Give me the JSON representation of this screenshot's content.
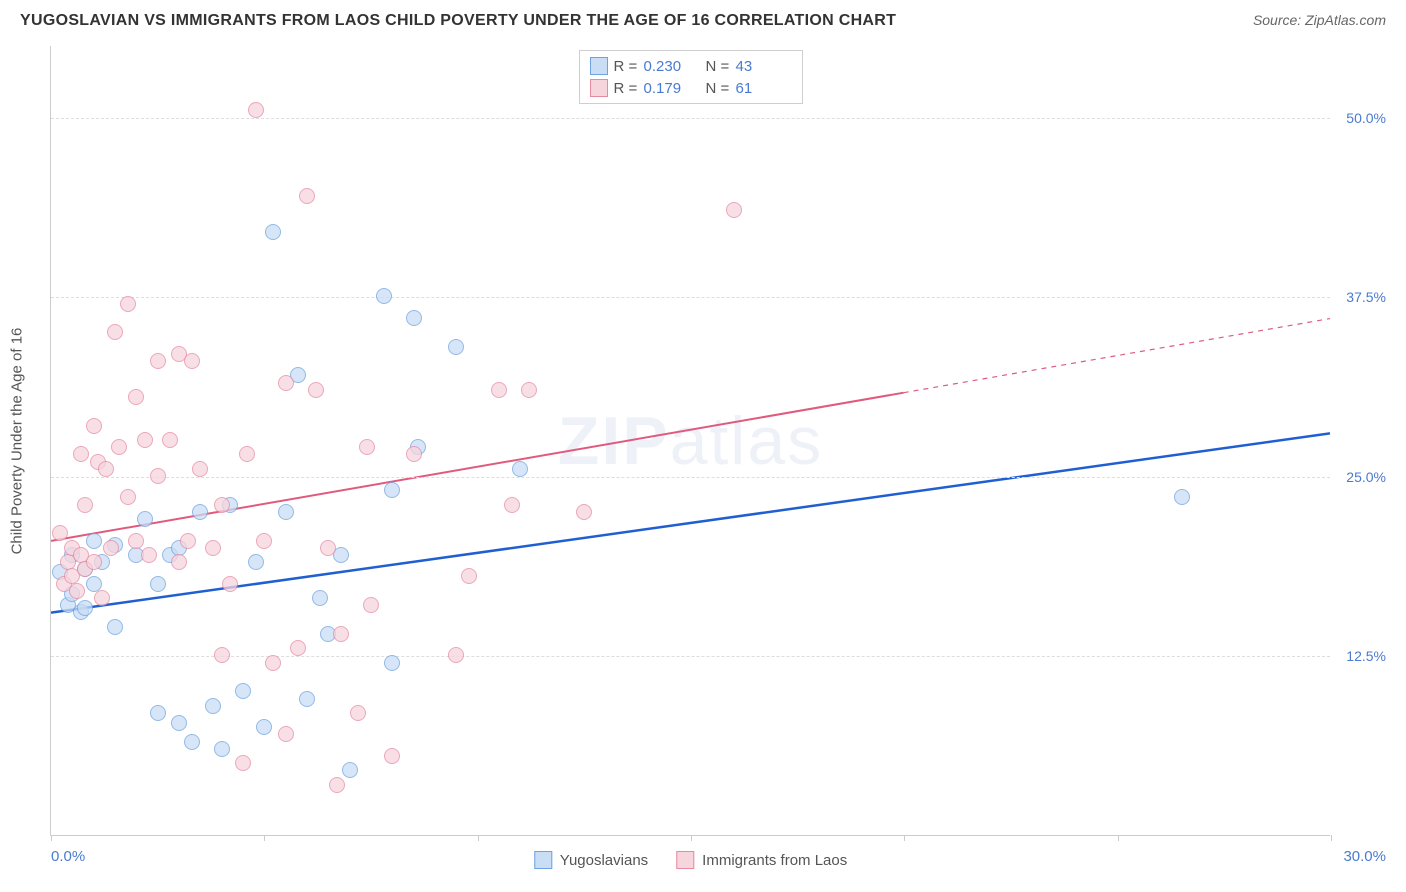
{
  "header": {
    "title": "YUGOSLAVIAN VS IMMIGRANTS FROM LAOS CHILD POVERTY UNDER THE AGE OF 16 CORRELATION CHART",
    "source_prefix": "Source: ",
    "source": "ZipAtlas.com"
  },
  "chart": {
    "type": "scatter",
    "y_axis_title": "Child Poverty Under the Age of 16",
    "watermark": "ZIPatlas",
    "xlim": [
      0,
      30
    ],
    "ylim": [
      0,
      55
    ],
    "x_min_label": "0.0%",
    "x_max_label": "30.0%",
    "x_tick_positions": [
      0,
      5,
      10,
      15,
      20,
      25,
      30
    ],
    "y_gridlines": [
      {
        "v": 12.5,
        "label": "12.5%"
      },
      {
        "v": 25.0,
        "label": "25.0%"
      },
      {
        "v": 37.5,
        "label": "37.5%"
      },
      {
        "v": 50.0,
        "label": "50.0%"
      }
    ],
    "background_color": "#ffffff",
    "grid_color": "#dddddd",
    "axis_color": "#cccccc",
    "axis_label_color": "#4a7bd0",
    "point_radius": 8,
    "series": [
      {
        "key": "yugoslavians",
        "name": "Yugoslavians",
        "color_fill": "#c9ddf5",
        "color_stroke": "#6fa3e0",
        "trend_color": "#1f5fd1",
        "trend_width": 2.5,
        "r_value": "0.230",
        "n_value": "43",
        "trend": {
          "x1": 0,
          "y1": 15.5,
          "x2": 30,
          "y2": 28.0,
          "solid_until_x": 30
        },
        "points": [
          [
            0.2,
            18.3
          ],
          [
            0.4,
            16.0
          ],
          [
            0.5,
            16.8
          ],
          [
            0.5,
            19.5
          ],
          [
            0.7,
            15.5
          ],
          [
            0.8,
            18.5
          ],
          [
            0.8,
            15.8
          ],
          [
            1.0,
            20.5
          ],
          [
            1.0,
            17.5
          ],
          [
            1.2,
            19.0
          ],
          [
            1.5,
            14.5
          ],
          [
            1.5,
            20.2
          ],
          [
            2.0,
            19.5
          ],
          [
            2.2,
            22.0
          ],
          [
            2.5,
            17.5
          ],
          [
            2.5,
            8.5
          ],
          [
            2.8,
            19.5
          ],
          [
            3.0,
            7.8
          ],
          [
            3.0,
            20.0
          ],
          [
            3.3,
            6.5
          ],
          [
            3.5,
            22.5
          ],
          [
            3.8,
            9.0
          ],
          [
            4.0,
            6.0
          ],
          [
            4.2,
            23.0
          ],
          [
            4.5,
            10.0
          ],
          [
            4.8,
            19.0
          ],
          [
            5.0,
            7.5
          ],
          [
            5.2,
            42.0
          ],
          [
            5.5,
            22.5
          ],
          [
            5.8,
            32.0
          ],
          [
            6.0,
            9.5
          ],
          [
            6.3,
            16.5
          ],
          [
            6.5,
            14.0
          ],
          [
            6.8,
            19.5
          ],
          [
            7.0,
            4.5
          ],
          [
            7.8,
            37.5
          ],
          [
            8.0,
            12.0
          ],
          [
            8.0,
            24.0
          ],
          [
            8.5,
            36.0
          ],
          [
            8.6,
            27.0
          ],
          [
            9.5,
            34.0
          ],
          [
            11.0,
            25.5
          ],
          [
            26.5,
            23.5
          ]
        ]
      },
      {
        "key": "laos",
        "name": "Immigrants from Laos",
        "color_fill": "#f6d5dd",
        "color_stroke": "#e68aa3",
        "trend_color": "#e05a7e",
        "trend_width": 2,
        "r_value": "0.179",
        "n_value": "61",
        "trend": {
          "x1": 0,
          "y1": 20.5,
          "x2": 30,
          "y2": 36.0,
          "solid_until_x": 20
        },
        "points": [
          [
            0.2,
            21.0
          ],
          [
            0.3,
            17.5
          ],
          [
            0.4,
            19.0
          ],
          [
            0.5,
            18.0
          ],
          [
            0.5,
            20.0
          ],
          [
            0.6,
            17.0
          ],
          [
            0.7,
            26.5
          ],
          [
            0.7,
            19.5
          ],
          [
            0.8,
            18.5
          ],
          [
            0.8,
            23.0
          ],
          [
            1.0,
            19.0
          ],
          [
            1.0,
            28.5
          ],
          [
            1.1,
            26.0
          ],
          [
            1.2,
            16.5
          ],
          [
            1.3,
            25.5
          ],
          [
            1.4,
            20.0
          ],
          [
            1.5,
            35.0
          ],
          [
            1.6,
            27.0
          ],
          [
            1.8,
            37.0
          ],
          [
            1.8,
            23.5
          ],
          [
            2.0,
            30.5
          ],
          [
            2.0,
            20.5
          ],
          [
            2.2,
            27.5
          ],
          [
            2.3,
            19.5
          ],
          [
            2.5,
            25.0
          ],
          [
            2.5,
            33.0
          ],
          [
            2.8,
            27.5
          ],
          [
            3.0,
            19.0
          ],
          [
            3.0,
            33.5
          ],
          [
            3.2,
            20.5
          ],
          [
            3.3,
            33.0
          ],
          [
            3.5,
            25.5
          ],
          [
            3.8,
            20.0
          ],
          [
            4.0,
            12.5
          ],
          [
            4.0,
            23.0
          ],
          [
            4.2,
            17.5
          ],
          [
            4.5,
            5.0
          ],
          [
            4.6,
            26.5
          ],
          [
            4.8,
            50.5
          ],
          [
            5.0,
            20.5
          ],
          [
            5.2,
            12.0
          ],
          [
            5.5,
            31.5
          ],
          [
            5.5,
            7.0
          ],
          [
            5.8,
            13.0
          ],
          [
            6.0,
            44.5
          ],
          [
            6.2,
            31.0
          ],
          [
            6.5,
            20.0
          ],
          [
            6.7,
            3.5
          ],
          [
            6.8,
            14.0
          ],
          [
            7.2,
            8.5
          ],
          [
            7.4,
            27.0
          ],
          [
            7.5,
            16.0
          ],
          [
            8.5,
            26.5
          ],
          [
            9.5,
            12.5
          ],
          [
            9.8,
            18.0
          ],
          [
            10.5,
            31.0
          ],
          [
            10.8,
            23.0
          ],
          [
            11.2,
            31.0
          ],
          [
            12.5,
            22.5
          ],
          [
            16.0,
            43.5
          ],
          [
            8.0,
            5.5
          ]
        ]
      }
    ],
    "legend_top_labels": {
      "r": "R =",
      "n": "N ="
    }
  }
}
